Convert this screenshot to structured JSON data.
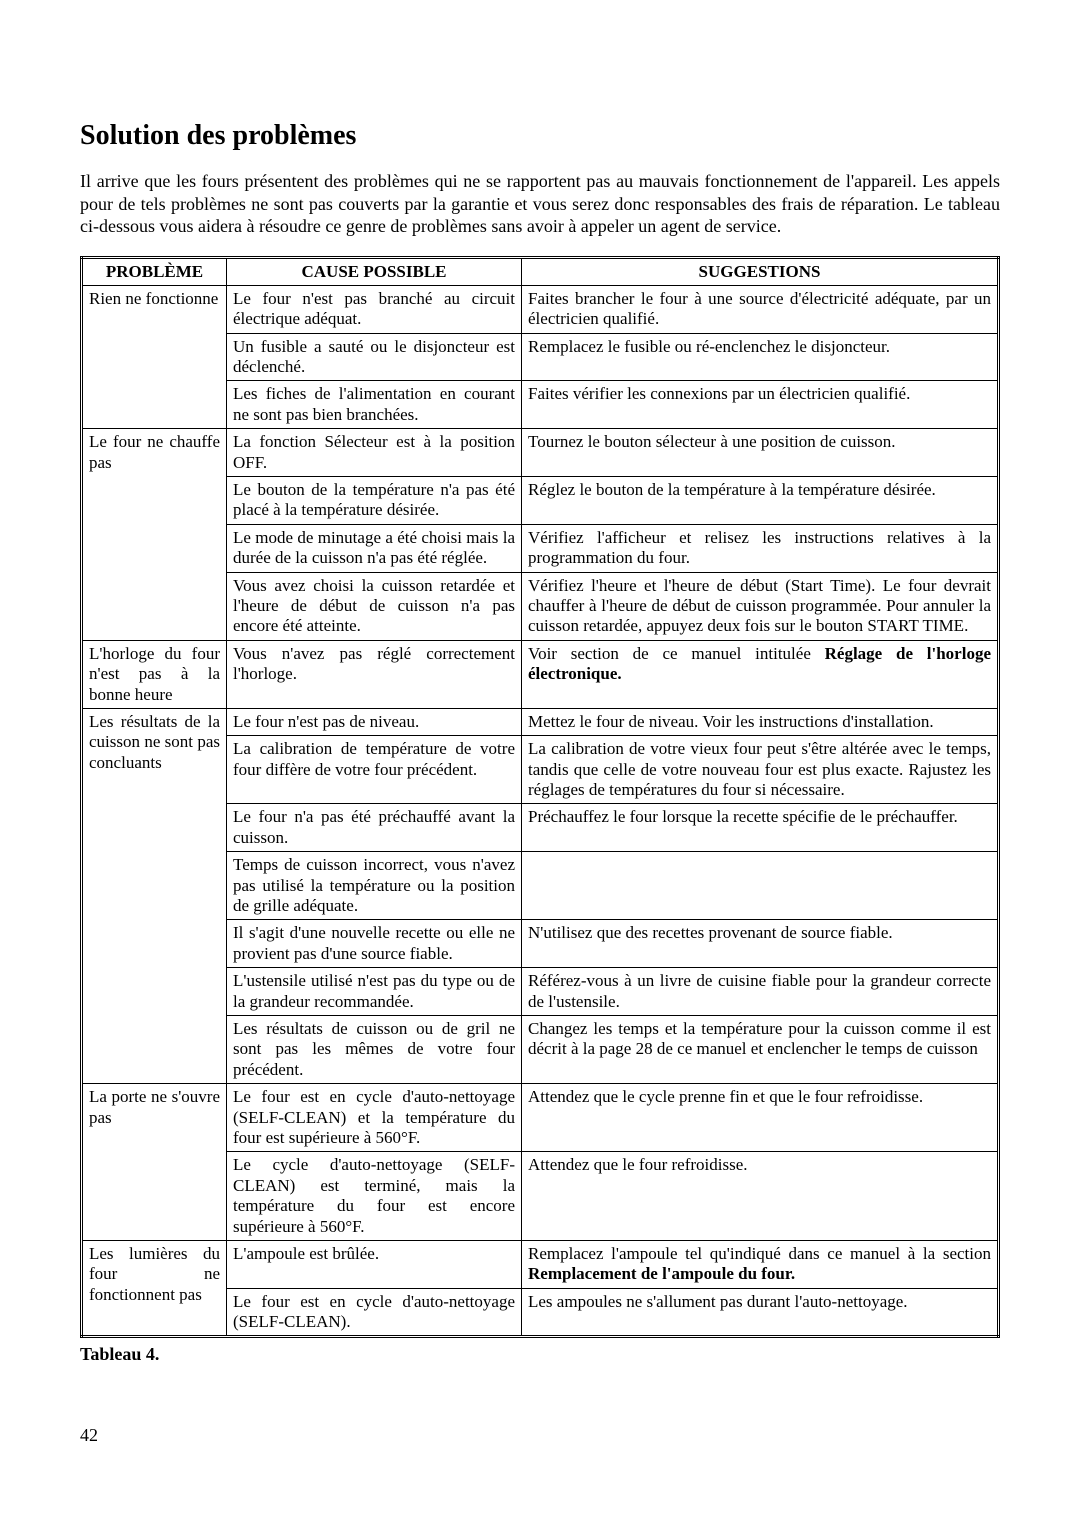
{
  "title": "Solution des problèmes",
  "intro": "Il arrive que les fours présentent des problèmes qui ne se rapportent pas au mauvais fonctionnement de l'appareil. Les appels pour de tels problèmes ne sont pas couverts par la garantie et vous serez donc responsables des frais de réparation. Le tableau ci-dessous vous aidera à résoudre ce genre de problèmes sans avoir à appeler un agent de service.",
  "headers": {
    "problem": "PROBLÈME",
    "cause": "CAUSE POSSIBLE",
    "suggestion": "SUGGESTIONS"
  },
  "caption": "Tableau 4.",
  "pageNumber": "42",
  "rows": {
    "r1": {
      "problem": "Rien ne fonctionne",
      "cause": "Le four n'est pas branché au circuit électrique adéquat.",
      "suggestion": "Faites brancher le four à une source d'électricité adéquate, par un électricien qualifié."
    },
    "r2": {
      "cause": "Un fusible a sauté ou le disjoncteur est déclenché.",
      "suggestion": "Remplacez le fusible ou ré-enclenchez le disjoncteur."
    },
    "r3": {
      "cause": "Les fiches de l'alimentation en courant ne sont pas bien branchées.",
      "suggestion": "Faites vérifier les connexions par un électricien qualifié."
    },
    "r4": {
      "problem": "Le four ne chauffe pas",
      "cause": "La fonction Sélecteur est à la position OFF.",
      "suggestion": "Tournez le bouton sélecteur à une position de cuisson."
    },
    "r5": {
      "cause": "Le bouton de la température n'a pas été placé à la température désirée.",
      "suggestion": "Réglez le bouton de la température à la température désirée."
    },
    "r6": {
      "cause": "Le mode de minutage a été choisi mais la durée de la cuisson n'a pas été réglée.",
      "suggestion": "Vérifiez l'afficheur et relisez les instructions relatives à la programmation du four."
    },
    "r7": {
      "cause": "Vous avez choisi la cuisson retardée et l'heure de début de cuisson n'a pas encore été atteinte.",
      "suggestion": "Vérifiez l'heure et l'heure de début (Start Time). Le four devrait chauffer à l'heure de début de cuisson programmée. Pour annuler la cuisson retardée, appuyez deux fois sur le bouton START TIME."
    },
    "r8": {
      "problem": "L'horloge du four n'est pas à la bonne heure",
      "cause": "Vous n'avez pas réglé correctement l'horloge.",
      "suggestionPrefix": "Voir section de ce manuel intitulée ",
      "suggestionBold": "Réglage de l'horloge électronique."
    },
    "r9": {
      "problem": "Les résultats de la cuisson ne sont pas concluants",
      "cause": "Le four n'est pas de niveau.",
      "suggestion": "Mettez le four de niveau. Voir les instructions d'installation."
    },
    "r10": {
      "cause": "La calibration de température de votre four diffère de votre four précédent.",
      "suggestion": "La calibration de votre vieux four peut s'être altérée avec le temps, tandis que celle de votre nouveau four est plus exacte. Rajustez les réglages de températures du four si nécessaire."
    },
    "r11": {
      "cause": "Le four n'a pas été préchauffé avant la cuisson.",
      "suggestion": "Préchauffez le four lorsque la recette spécifie de le préchauffer."
    },
    "r12": {
      "cause": "Temps de cuisson incorrect, vous n'avez pas utilisé la température ou la position de grille adéquate.",
      "suggestion": ""
    },
    "r13": {
      "cause": "Il s'agit d'une nouvelle recette ou elle ne provient pas d'une source fiable.",
      "suggestion": "N'utilisez que des recettes provenant de source fiable."
    },
    "r14": {
      "cause": "L'ustensile utilisé n'est pas du type ou de la grandeur recommandée.",
      "suggestion": "Référez-vous à un livre de cuisine fiable pour la grandeur correcte de l'ustensile."
    },
    "r15": {
      "cause": "Les résultats de cuisson ou de gril ne sont pas les mêmes de votre four précédent.",
      "suggestion": "Changez les temps et la température pour la cuisson comme il est décrit à la page 28 de ce manuel et enclencher le temps de cuisson"
    },
    "r16": {
      "problem": "La porte ne s'ouvre pas",
      "cause": "Le four est en cycle d'auto-nettoyage (SELF-CLEAN) et la température du four est supérieure à 560°F.",
      "suggestion": "Attendez que le cycle prenne fin et que le four refroidisse."
    },
    "r17": {
      "cause": "Le cycle d'auto-nettoyage (SELF-CLEAN) est terminé, mais la température du four est encore supérieure à 560°F.",
      "suggestion": "Attendez que le four refroidisse."
    },
    "r18": {
      "problem": "Les lumières du four ne fonctionnent pas",
      "cause": "L'ampoule est brûlée.",
      "suggestionPrefix": "Remplacez l'ampoule tel qu'indiqué dans ce manuel à la section ",
      "suggestionBold": "Remplacement de l'ampoule du four."
    },
    "r19": {
      "cause": "Le four est en cycle d'auto-nettoyage (SELF-CLEAN).",
      "suggestion": "Les ampoules ne s'allument pas durant l'auto-nettoyage."
    }
  }
}
